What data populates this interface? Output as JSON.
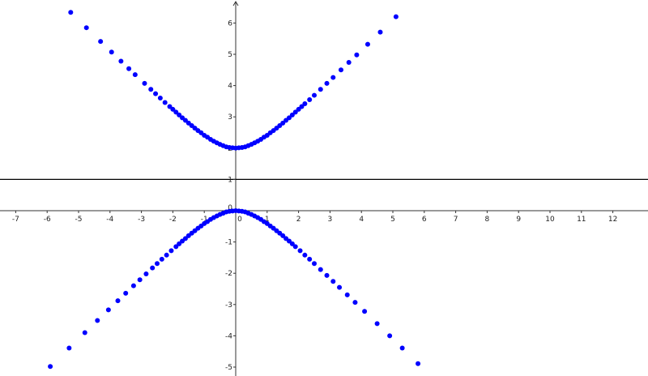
{
  "chart_data": {
    "type": "scatter",
    "title": "",
    "xlabel": "",
    "ylabel": "",
    "xlim": [
      -7.5,
      13.1
    ],
    "ylim": [
      -5.2,
      6.7
    ],
    "grid": false,
    "x_ticks": [
      "-7",
      "-6",
      "-5",
      "-4",
      "-3",
      "-2",
      "-1",
      "0",
      "1",
      "2",
      "3",
      "4",
      "5",
      "6",
      "7",
      "8",
      "9",
      "10",
      "11",
      "12"
    ],
    "y_ticks": [
      "6",
      "5",
      "4",
      "3",
      "2",
      "1",
      "0",
      "-1",
      "-2",
      "-3",
      "-4",
      "-5"
    ],
    "horizontal_lines": [
      1
    ],
    "point_color": "#0000ff",
    "line_color": "#000000",
    "series": [
      {
        "x": [
          -5.25,
          -4.75,
          -4.3,
          -3.95,
          -3.65,
          -3.4,
          -3.2,
          -2.9,
          -2.7,
          -2.55,
          -2.4,
          -2.25,
          -2.1,
          -2.0,
          -1.9,
          -1.8,
          -1.7,
          -1.6,
          -1.5,
          -1.4,
          -1.3,
          -1.2,
          -1.1,
          -1.0,
          -0.9,
          -0.8,
          -0.7,
          -0.6,
          -0.5,
          -0.4,
          -0.3,
          -0.2,
          -0.1,
          0,
          0.1,
          0.2,
          0.3,
          0.4,
          0.5,
          0.6,
          0.7,
          0.8,
          0.9,
          1.0,
          1.1,
          1.2,
          1.3,
          1.4,
          1.5,
          1.6,
          1.7,
          1.8,
          1.9,
          2.0,
          2.1,
          2.2,
          2.35,
          2.5,
          2.7,
          2.9,
          3.1,
          3.35,
          3.6,
          3.85,
          4.2,
          4.6,
          5.1
        ],
        "y": [
          6.34,
          5.85,
          5.41,
          5.07,
          4.78,
          4.54,
          4.35,
          4.07,
          3.88,
          3.74,
          3.6,
          3.46,
          3.33,
          3.24,
          3.15,
          3.06,
          2.97,
          2.89,
          2.8,
          2.72,
          2.64,
          2.56,
          2.49,
          2.41,
          2.35,
          2.28,
          2.22,
          2.17,
          2.12,
          2.08,
          2.04,
          2.02,
          2.01,
          2.0,
          2.01,
          2.02,
          2.04,
          2.08,
          2.12,
          2.17,
          2.22,
          2.28,
          2.35,
          2.41,
          2.49,
          2.56,
          2.64,
          2.72,
          2.8,
          2.89,
          2.97,
          3.06,
          3.15,
          3.24,
          3.33,
          3.42,
          3.55,
          3.69,
          3.88,
          4.07,
          4.26,
          4.5,
          4.74,
          4.98,
          5.32,
          5.71,
          6.2
        ]
      },
      {
        "x": [
          -5.9,
          -5.3,
          -4.8,
          -4.4,
          -4.05,
          -3.75,
          -3.5,
          -3.25,
          -3.05,
          -2.85,
          -2.65,
          -2.5,
          -2.35,
          -2.2,
          -2.05,
          -1.9,
          -1.8,
          -1.7,
          -1.6,
          -1.5,
          -1.4,
          -1.3,
          -1.2,
          -1.1,
          -1.0,
          -0.9,
          -0.8,
          -0.7,
          -0.6,
          -0.5,
          -0.4,
          -0.3,
          -0.2,
          -0.1,
          0,
          0.1,
          0.2,
          0.3,
          0.4,
          0.5,
          0.6,
          0.7,
          0.8,
          0.9,
          1.0,
          1.1,
          1.2,
          1.3,
          1.4,
          1.5,
          1.6,
          1.7,
          1.8,
          1.9,
          2.05,
          2.2,
          2.35,
          2.5,
          2.7,
          2.9,
          3.1,
          3.3,
          3.55,
          3.8,
          4.1,
          4.5,
          4.9,
          5.3,
          5.8
        ],
        "y": [
          -4.98,
          -4.39,
          -3.9,
          -3.51,
          -3.17,
          -2.88,
          -2.64,
          -2.4,
          -2.21,
          -2.02,
          -1.83,
          -1.69,
          -1.55,
          -1.42,
          -1.28,
          -1.15,
          -1.06,
          -0.97,
          -0.89,
          -0.8,
          -0.72,
          -0.64,
          -0.56,
          -0.49,
          -0.41,
          -0.35,
          -0.28,
          -0.22,
          -0.17,
          -0.12,
          -0.08,
          -0.04,
          -0.02,
          -0.01,
          0,
          -0.01,
          -0.02,
          -0.04,
          -0.08,
          -0.12,
          -0.17,
          -0.22,
          -0.28,
          -0.35,
          -0.41,
          -0.49,
          -0.56,
          -0.64,
          -0.72,
          -0.8,
          -0.89,
          -0.97,
          -1.06,
          -1.15,
          -1.28,
          -1.42,
          -1.55,
          -1.69,
          -1.88,
          -2.07,
          -2.26,
          -2.45,
          -2.69,
          -2.93,
          -3.22,
          -3.61,
          -4.0,
          -4.39,
          -4.89
        ]
      }
    ]
  }
}
